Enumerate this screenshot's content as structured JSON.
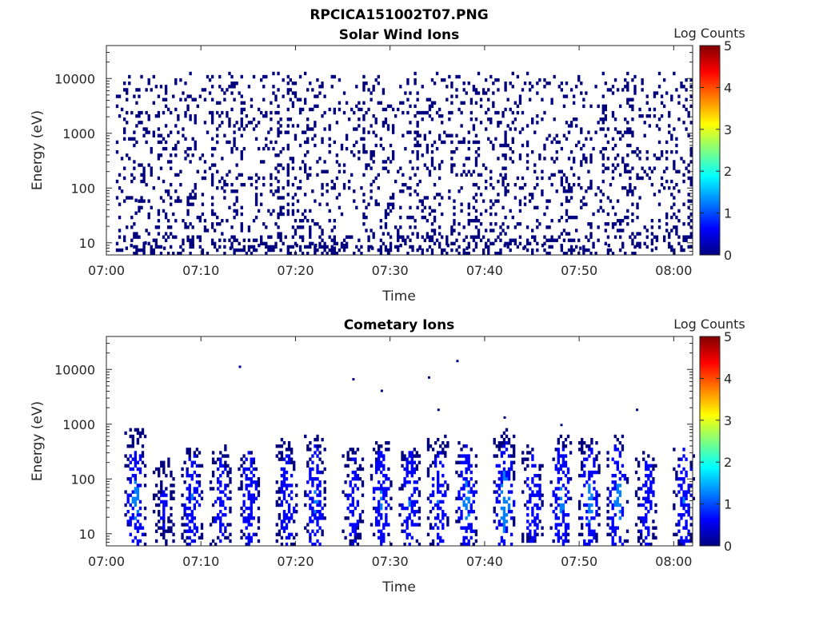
{
  "figure_title": "RPCICA151002T07.PNG",
  "colormap": [
    "#00007f",
    "#0000ff",
    "#007fff",
    "#00ffff",
    "#7fff7f",
    "#ffff00",
    "#ff7f00",
    "#ff0000",
    "#7f0000"
  ],
  "chart_data": [
    {
      "type": "heatmap",
      "title": "Solar Wind Ions",
      "xlabel": "Time",
      "ylabel": "Energy (eV)",
      "x_ticks": [
        "07:00",
        "07:10",
        "07:20",
        "07:30",
        "07:40",
        "07:50",
        "08:00"
      ],
      "xlim": [
        "07:00",
        "08:02"
      ],
      "y_scale": "log",
      "y_ticks": [
        "10",
        "100",
        "1000",
        "10000"
      ],
      "ylim": [
        6,
        40000
      ],
      "colorbar": {
        "label": "Log Counts",
        "ticks": [
          "0",
          "1",
          "2",
          "3",
          "4",
          "5"
        ],
        "range": [
          0,
          5
        ]
      },
      "data_start": "07:01",
      "cells": [
        [
          2.0,
          8,
          0.3
        ],
        [
          2.5,
          9,
          0.2
        ],
        [
          3.0,
          35,
          0.3
        ],
        [
          3.0,
          60,
          0.2
        ],
        [
          4.0,
          10,
          0.2
        ],
        [
          6.0,
          8,
          0.3
        ],
        [
          9.0,
          9,
          0.2
        ],
        [
          13.0,
          8,
          0.2
        ],
        [
          16.0,
          9,
          0.3
        ],
        [
          20.0,
          9,
          0.2
        ],
        [
          22.0,
          9,
          0.3
        ],
        [
          24.0,
          8,
          0.2
        ],
        [
          25.0,
          9,
          0.3
        ],
        [
          28.0,
          8,
          0.2
        ],
        [
          31.0,
          9,
          0.2
        ],
        [
          33.0,
          8,
          0.3
        ],
        [
          36.0,
          9,
          0.2
        ],
        [
          38.0,
          8,
          0.2
        ],
        [
          40.0,
          9,
          0.2
        ],
        [
          42.0,
          9,
          0.3
        ],
        [
          44.0,
          8,
          0.2
        ],
        [
          46.0,
          9,
          0.2
        ],
        [
          48.0,
          9,
          0.3
        ],
        [
          50.0,
          8,
          0.2
        ],
        [
          53.0,
          9,
          0.2
        ],
        [
          56.0,
          9,
          0.3
        ],
        [
          58.0,
          8,
          0.2
        ]
      ]
    },
    {
      "type": "heatmap",
      "title": "Cometary Ions",
      "xlabel": "Time",
      "ylabel": "Energy (eV)",
      "x_ticks": [
        "07:00",
        "07:10",
        "07:20",
        "07:30",
        "07:40",
        "07:50",
        "08:00"
      ],
      "xlim": [
        "07:00",
        "08:02"
      ],
      "y_scale": "log",
      "y_ticks": [
        "10",
        "100",
        "1000",
        "10000"
      ],
      "ylim": [
        6,
        40000
      ],
      "colorbar": {
        "label": "Log Counts",
        "ticks": [
          "0",
          "1",
          "2",
          "3",
          "4",
          "5"
        ],
        "range": [
          0,
          5
        ]
      },
      "bursts": [
        {
          "center": "07:03",
          "emax": 700,
          "peak": 1.3
        },
        {
          "center": "07:06",
          "emax": 200,
          "peak": 0.4
        },
        {
          "center": "07:09",
          "emax": 300,
          "peak": 1.0
        },
        {
          "center": "07:12",
          "emax": 300,
          "peak": 0.8
        },
        {
          "center": "07:15",
          "emax": 250,
          "peak": 0.9
        },
        {
          "center": "07:19",
          "emax": 450,
          "peak": 0.9
        },
        {
          "center": "07:22",
          "emax": 500,
          "peak": 1.1
        },
        {
          "center": "07:26",
          "emax": 300,
          "peak": 0.7
        },
        {
          "center": "07:29",
          "emax": 400,
          "peak": 1.1
        },
        {
          "center": "07:32",
          "emax": 300,
          "peak": 1.0
        },
        {
          "center": "07:35",
          "emax": 500,
          "peak": 1.0
        },
        {
          "center": "07:38",
          "emax": 400,
          "peak": 1.3
        },
        {
          "center": "07:42",
          "emax": 600,
          "peak": 1.6
        },
        {
          "center": "07:45",
          "emax": 300,
          "peak": 0.8
        },
        {
          "center": "07:48",
          "emax": 500,
          "peak": 1.2
        },
        {
          "center": "07:51",
          "emax": 400,
          "peak": 1.3
        },
        {
          "center": "07:54",
          "emax": 500,
          "peak": 1.4
        },
        {
          "center": "07:57",
          "emax": 250,
          "peak": 0.8
        },
        {
          "center": "08:01",
          "emax": 300,
          "peak": 1.0
        }
      ],
      "points": [
        [
          "07:14",
          11000
        ],
        [
          "07:26",
          6500
        ],
        [
          "07:29",
          4000
        ],
        [
          "07:34",
          7000
        ],
        [
          "07:35",
          1800
        ],
        [
          "07:37",
          14000
        ],
        [
          "07:42",
          1300
        ],
        [
          "07:48",
          950
        ],
        [
          "07:56",
          1800
        ]
      ]
    }
  ]
}
